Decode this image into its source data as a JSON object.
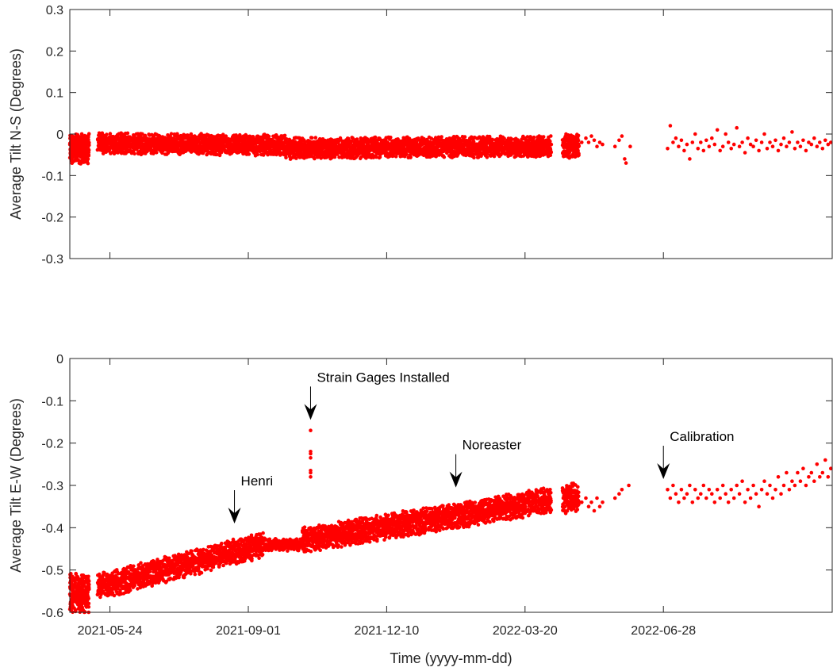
{
  "colors": {
    "marker": "#ff0000",
    "axis": "#262626",
    "arrow": "#000000"
  },
  "chart_data": [
    {
      "type": "scatter",
      "title": "",
      "xlabel": "",
      "ylabel": "Average Tilt N-S (Degrees)",
      "xlim": [
        "2021-04-25",
        "2022-10-28"
      ],
      "ylim": [
        -0.3,
        0.3
      ],
      "yticks": [
        0.3,
        0.2,
        0.1,
        0,
        -0.1,
        -0.2,
        -0.3
      ],
      "ytick_labels": [
        "0.3",
        "0.2",
        "0.1",
        "0",
        "-0.1",
        "-0.2",
        "-0.3"
      ],
      "xticks": [
        "2021-05-24",
        "2021-09-01",
        "2021-12-10",
        "2022-03-20",
        "2022-06-28"
      ],
      "xtick_labels": [],
      "grid": false,
      "series": [
        {
          "segments": [
            {
              "start": "2021-04-25",
              "end": "2021-05-09",
              "mean": -0.035,
              "amp": 0.035,
              "slope": 0.0,
              "density": 20
            },
            {
              "start": "2021-05-15",
              "end": "2021-09-28",
              "mean": -0.022,
              "amp": 0.025,
              "slope": -0.005,
              "density": 10
            },
            {
              "start": "2021-09-28",
              "end": "2022-04-08",
              "mean": -0.035,
              "amp": 0.025,
              "slope": 0.005,
              "density": 10
            },
            {
              "start": "2022-04-16",
              "end": "2022-04-28",
              "mean": -0.03,
              "amp": 0.03,
              "slope": 0.0,
              "density": 12
            }
          ],
          "points": [
            [
              "2022-04-30",
              -0.02
            ],
            [
              "2022-05-03",
              -0.01
            ],
            [
              "2022-05-05",
              -0.02
            ],
            [
              "2022-05-07",
              -0.005
            ],
            [
              "2022-05-09",
              -0.015
            ],
            [
              "2022-05-11",
              -0.03
            ],
            [
              "2022-05-13",
              -0.02
            ],
            [
              "2022-05-15",
              -0.025
            ],
            [
              "2022-05-24",
              -0.03
            ],
            [
              "2022-05-27",
              -0.015
            ],
            [
              "2022-05-29",
              -0.005
            ],
            [
              "2022-05-31",
              -0.06
            ],
            [
              "2022-06-01",
              -0.07
            ],
            [
              "2022-06-04",
              -0.03
            ],
            [
              "2022-07-01",
              -0.035
            ],
            [
              "2022-07-03",
              0.02
            ],
            [
              "2022-07-05",
              -0.02
            ],
            [
              "2022-07-07",
              -0.01
            ],
            [
              "2022-07-09",
              -0.03
            ],
            [
              "2022-07-11",
              -0.015
            ],
            [
              "2022-07-13",
              -0.04
            ],
            [
              "2022-07-15",
              -0.025
            ],
            [
              "2022-07-17",
              -0.06
            ],
            [
              "2022-07-19",
              -0.02
            ],
            [
              "2022-07-21",
              0.0
            ],
            [
              "2022-07-23",
              -0.035
            ],
            [
              "2022-07-25",
              -0.02
            ],
            [
              "2022-07-27",
              -0.04
            ],
            [
              "2022-07-29",
              -0.015
            ],
            [
              "2022-07-31",
              -0.03
            ],
            [
              "2022-08-02",
              -0.01
            ],
            [
              "2022-08-04",
              -0.025
            ],
            [
              "2022-08-06",
              0.01
            ],
            [
              "2022-08-08",
              -0.04
            ],
            [
              "2022-08-10",
              -0.03
            ],
            [
              "2022-08-12",
              0.0
            ],
            [
              "2022-08-14",
              -0.02
            ],
            [
              "2022-08-16",
              -0.035
            ],
            [
              "2022-08-18",
              -0.025
            ],
            [
              "2022-08-20",
              0.015
            ],
            [
              "2022-08-22",
              -0.03
            ],
            [
              "2022-08-24",
              -0.02
            ],
            [
              "2022-08-26",
              -0.045
            ],
            [
              "2022-08-28",
              -0.01
            ],
            [
              "2022-08-30",
              -0.025
            ],
            [
              "2022-09-01",
              -0.03
            ],
            [
              "2022-09-03",
              -0.015
            ],
            [
              "2022-09-05",
              -0.04
            ],
            [
              "2022-09-07",
              -0.02
            ],
            [
              "2022-09-09",
              0.0
            ],
            [
              "2022-09-11",
              -0.035
            ],
            [
              "2022-09-13",
              -0.02
            ],
            [
              "2022-09-15",
              -0.03
            ],
            [
              "2022-09-17",
              -0.015
            ],
            [
              "2022-09-19",
              -0.04
            ],
            [
              "2022-09-21",
              -0.025
            ],
            [
              "2022-09-23",
              -0.01
            ],
            [
              "2022-09-25",
              -0.03
            ],
            [
              "2022-09-27",
              -0.02
            ],
            [
              "2022-09-29",
              0.005
            ],
            [
              "2022-10-01",
              -0.035
            ],
            [
              "2022-10-03",
              -0.02
            ],
            [
              "2022-10-05",
              -0.03
            ],
            [
              "2022-10-07",
              -0.015
            ],
            [
              "2022-10-09",
              -0.04
            ],
            [
              "2022-10-11",
              -0.02
            ],
            [
              "2022-10-13",
              -0.025
            ],
            [
              "2022-10-15",
              -0.01
            ],
            [
              "2022-10-17",
              -0.03
            ],
            [
              "2022-10-19",
              -0.02
            ],
            [
              "2022-10-21",
              -0.035
            ],
            [
              "2022-10-23",
              -0.015
            ],
            [
              "2022-10-25",
              -0.025
            ],
            [
              "2022-10-27",
              -0.02
            ]
          ]
        }
      ]
    },
    {
      "type": "scatter",
      "title": "",
      "xlabel": "Time (yyyy-mm-dd)",
      "ylabel": "Average Tilt E-W (Degrees)",
      "xlim": [
        "2021-04-25",
        "2022-10-28"
      ],
      "ylim": [
        -0.6,
        0
      ],
      "yticks": [
        0,
        -0.1,
        -0.2,
        -0.3,
        -0.4,
        -0.5,
        -0.6
      ],
      "ytick_labels": [
        "0",
        "-0.1",
        "-0.2",
        "-0.3",
        "-0.4",
        "-0.5",
        "-0.6"
      ],
      "xticks": [
        "2021-05-24",
        "2021-09-01",
        "2021-12-10",
        "2022-03-20",
        "2022-06-28"
      ],
      "xtick_labels": [
        "2021-05-24",
        "2021-09-01",
        "2021-12-10",
        "2022-03-20",
        "2022-06-28"
      ],
      "grid": false,
      "series": [
        {
          "segments": [
            {
              "start": "2021-04-25",
              "end": "2021-05-09",
              "mean": -0.555,
              "amp": 0.045,
              "slope": 0.0,
              "density": 20
            },
            {
              "start": "2021-05-15",
              "end": "2021-09-12",
              "mean": -0.54,
              "amp": 0.03,
              "slope": 0.1,
              "density": 10
            },
            {
              "start": "2021-09-12",
              "end": "2021-10-10",
              "mean": -0.44,
              "amp": 0.015,
              "slope": 0.0,
              "density": 6
            },
            {
              "start": "2021-10-10",
              "end": "2022-04-08",
              "mean": -0.43,
              "amp": 0.03,
              "slope": 0.095,
              "density": 10
            },
            {
              "start": "2022-04-16",
              "end": "2022-04-28",
              "mean": -0.33,
              "amp": 0.035,
              "slope": 0.0,
              "density": 12
            }
          ],
          "points": [
            [
              "2021-10-16",
              -0.17
            ],
            [
              "2021-10-16",
              -0.22
            ],
            [
              "2021-10-16",
              -0.235
            ],
            [
              "2021-10-16",
              -0.27
            ],
            [
              "2021-10-16",
              -0.28
            ],
            [
              "2021-10-16",
              -0.265
            ],
            [
              "2021-10-16",
              -0.225
            ],
            [
              "2022-04-30",
              -0.34
            ],
            [
              "2022-05-03",
              -0.33
            ],
            [
              "2022-05-05",
              -0.35
            ],
            [
              "2022-05-07",
              -0.34
            ],
            [
              "2022-05-09",
              -0.36
            ],
            [
              "2022-05-11",
              -0.33
            ],
            [
              "2022-05-13",
              -0.35
            ],
            [
              "2022-05-15",
              -0.34
            ],
            [
              "2022-05-24",
              -0.33
            ],
            [
              "2022-05-27",
              -0.32
            ],
            [
              "2022-05-29",
              -0.31
            ],
            [
              "2022-06-03",
              -0.3
            ],
            [
              "2022-07-01",
              -0.31
            ],
            [
              "2022-07-03",
              -0.33
            ],
            [
              "2022-07-05",
              -0.3
            ],
            [
              "2022-07-07",
              -0.32
            ],
            [
              "2022-07-09",
              -0.34
            ],
            [
              "2022-07-11",
              -0.31
            ],
            [
              "2022-07-13",
              -0.33
            ],
            [
              "2022-07-15",
              -0.32
            ],
            [
              "2022-07-17",
              -0.3
            ],
            [
              "2022-07-19",
              -0.34
            ],
            [
              "2022-07-21",
              -0.31
            ],
            [
              "2022-07-23",
              -0.33
            ],
            [
              "2022-07-25",
              -0.32
            ],
            [
              "2022-07-27",
              -0.3
            ],
            [
              "2022-07-29",
              -0.33
            ],
            [
              "2022-07-31",
              -0.31
            ],
            [
              "2022-08-02",
              -0.32
            ],
            [
              "2022-08-04",
              -0.34
            ],
            [
              "2022-08-06",
              -0.31
            ],
            [
              "2022-08-08",
              -0.33
            ],
            [
              "2022-08-10",
              -0.3
            ],
            [
              "2022-08-12",
              -0.32
            ],
            [
              "2022-08-14",
              -0.34
            ],
            [
              "2022-08-16",
              -0.31
            ],
            [
              "2022-08-18",
              -0.33
            ],
            [
              "2022-08-20",
              -0.3
            ],
            [
              "2022-08-22",
              -0.32
            ],
            [
              "2022-08-24",
              -0.29
            ],
            [
              "2022-08-26",
              -0.34
            ],
            [
              "2022-08-28",
              -0.31
            ],
            [
              "2022-08-30",
              -0.33
            ],
            [
              "2022-09-01",
              -0.3
            ],
            [
              "2022-09-03",
              -0.32
            ],
            [
              "2022-09-05",
              -0.35
            ],
            [
              "2022-09-07",
              -0.31
            ],
            [
              "2022-09-09",
              -0.29
            ],
            [
              "2022-09-11",
              -0.32
            ],
            [
              "2022-09-13",
              -0.3
            ],
            [
              "2022-09-15",
              -0.33
            ],
            [
              "2022-09-17",
              -0.31
            ],
            [
              "2022-09-19",
              -0.28
            ],
            [
              "2022-09-21",
              -0.32
            ],
            [
              "2022-09-23",
              -0.3
            ],
            [
              "2022-09-25",
              -0.27
            ],
            [
              "2022-09-27",
              -0.31
            ],
            [
              "2022-09-29",
              -0.29
            ],
            [
              "2022-10-01",
              -0.3
            ],
            [
              "2022-10-03",
              -0.27
            ],
            [
              "2022-10-05",
              -0.29
            ],
            [
              "2022-10-07",
              -0.26
            ],
            [
              "2022-10-09",
              -0.3
            ],
            [
              "2022-10-11",
              -0.28
            ],
            [
              "2022-10-13",
              -0.27
            ],
            [
              "2022-10-15",
              -0.29
            ],
            [
              "2022-10-17",
              -0.25
            ],
            [
              "2022-10-19",
              -0.28
            ],
            [
              "2022-10-21",
              -0.27
            ],
            [
              "2022-10-23",
              -0.24
            ],
            [
              "2022-10-25",
              -0.28
            ],
            [
              "2022-10-27",
              -0.26
            ]
          ]
        }
      ],
      "annotations": [
        {
          "text": "Henri",
          "date": "2021-08-22",
          "y": -0.39
        },
        {
          "text": "Strain Gages Installed",
          "date": "2021-10-16",
          "y": -0.145
        },
        {
          "text": "Noreaster",
          "date": "2022-01-29",
          "y": -0.305
        },
        {
          "text": "Calibration",
          "date": "2022-06-28",
          "y": -0.285
        }
      ]
    }
  ]
}
